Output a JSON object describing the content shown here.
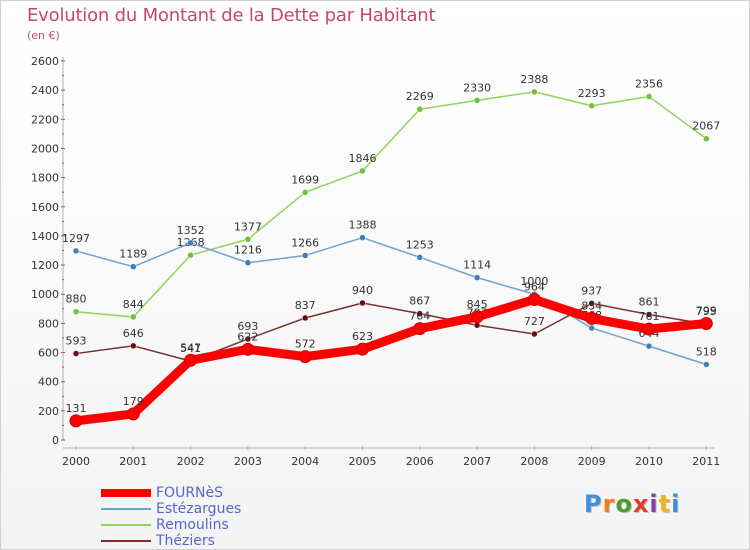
{
  "title": "Evolution du Montant de la Dette par Habitant",
  "subtitle": "(en €)",
  "logo_text": "Proxiti",
  "logo_colors": [
    "#3d8fd9",
    "#f07d1e",
    "#4c9e2a",
    "#e23b2b",
    "#8a3fa0",
    "#f0b31e",
    "#3d8fd9"
  ],
  "chart_data": {
    "type": "line",
    "title": "Evolution du Montant de la Dette par Habitant",
    "subtitle": "(en €)",
    "x": [
      "2000",
      "2001",
      "2002",
      "2003",
      "2004",
      "2005",
      "2006",
      "2007",
      "2008",
      "2009",
      "2010",
      "2011"
    ],
    "ylim": [
      0,
      2600
    ],
    "yticks": [
      "0",
      "200",
      "400",
      "600",
      "800",
      "1000",
      "1200",
      "1400",
      "1600",
      "1800",
      "2000",
      "2200",
      "2400",
      "2600"
    ],
    "grid": false,
    "legend_position": "bottom-left",
    "series": [
      {
        "name": "Théziers",
        "color": "#7a3030",
        "marker": "#6a1010",
        "values": [
          593,
          646,
          541,
          693,
          837,
          940,
          867,
          787,
          727,
          937,
          861,
          795
        ],
        "labels": [
          "593",
          "646",
          "541",
          "693",
          "837",
          "940",
          "867",
          "787",
          "727",
          "937",
          "861",
          "795"
        ]
      },
      {
        "name": "Remoulins",
        "color": "#8ed45e",
        "marker": "#6fc23c",
        "values": [
          880,
          844,
          1268,
          1377,
          1699,
          1846,
          2269,
          2330,
          2388,
          2293,
          2356,
          2067
        ],
        "labels": [
          "880",
          "844",
          "1268",
          "1377",
          "1699",
          "1846",
          "2269",
          "2330",
          "2388",
          "2293",
          "2356",
          "2067"
        ]
      },
      {
        "name": "Estézargues",
        "color": "#6ea2cf",
        "marker": "#3b7fc0",
        "values": [
          1297,
          1189,
          1352,
          1216,
          1266,
          1388,
          1253,
          1114,
          1000,
          768,
          644,
          518
        ],
        "labels": [
          "1297",
          "1189",
          "1352",
          "1216",
          "1266",
          "1388",
          "1253",
          "1114",
          "1000",
          "768",
          "644",
          "518"
        ]
      },
      {
        "name": "FOURNèS",
        "color": "#ff0000",
        "marker": "#ff0000",
        "thick": true,
        "values": [
          131,
          179,
          547,
          622,
          572,
          623,
          764,
          845,
          964,
          834,
          761,
          799
        ],
        "labels": [
          "131",
          "179",
          "547",
          "622",
          "572",
          "623",
          "764",
          "845",
          "964",
          "834",
          "761",
          "799"
        ]
      }
    ]
  },
  "legend": [
    {
      "label": "FOURNèS",
      "color": "#ff0000",
      "thick": true
    },
    {
      "label": "Estézargues",
      "color": "#6ea2cf",
      "thick": false
    },
    {
      "label": "Remoulins",
      "color": "#8ed45e",
      "thick": false
    },
    {
      "label": "Théziers",
      "color": "#7a3030",
      "thick": false
    }
  ]
}
